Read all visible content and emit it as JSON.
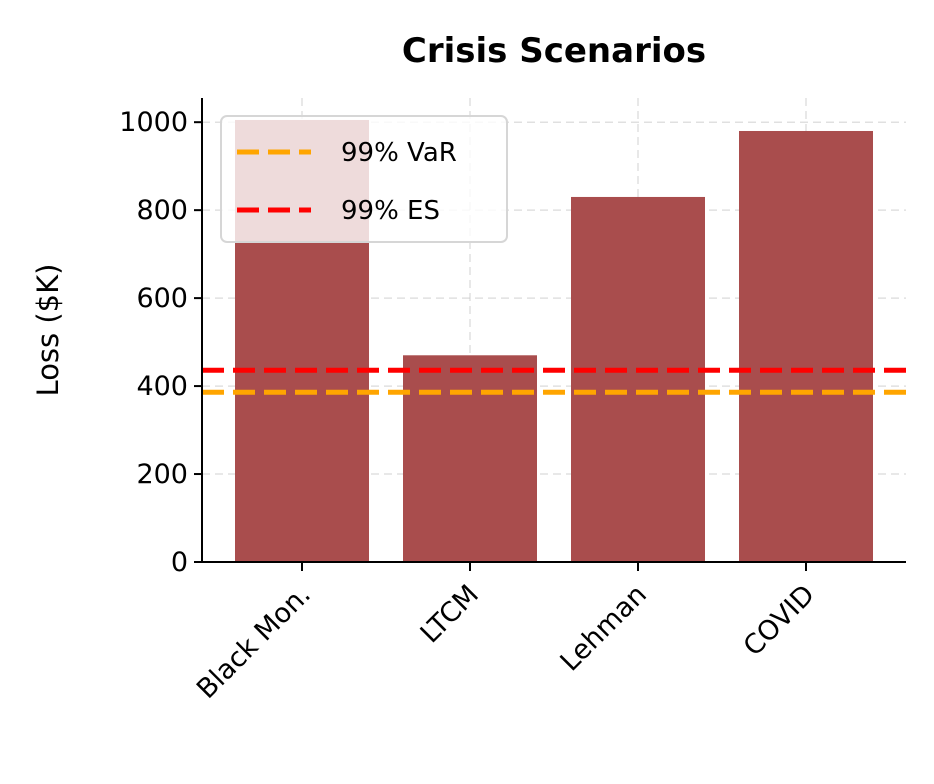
{
  "chart_data": {
    "type": "bar",
    "title": "Crisis Scenarios",
    "xlabel": "",
    "ylabel": "Loss ($K)",
    "categories": [
      "Black Mon.",
      "LTCM",
      "Lehman",
      "COVID"
    ],
    "values": [
      1005,
      470,
      830,
      980
    ],
    "ylim": [
      0,
      1055
    ],
    "yticks": [
      0,
      200,
      400,
      600,
      800,
      1000
    ],
    "grid": true,
    "legend_position": "top-left",
    "bar_color": "#a94d4d",
    "reference_lines": [
      {
        "name": "99% VaR",
        "value": 386,
        "color": "#ffa500",
        "style": "dashed"
      },
      {
        "name": "99% ES",
        "value": 436,
        "color": "#ff0000",
        "style": "dashed"
      }
    ]
  }
}
